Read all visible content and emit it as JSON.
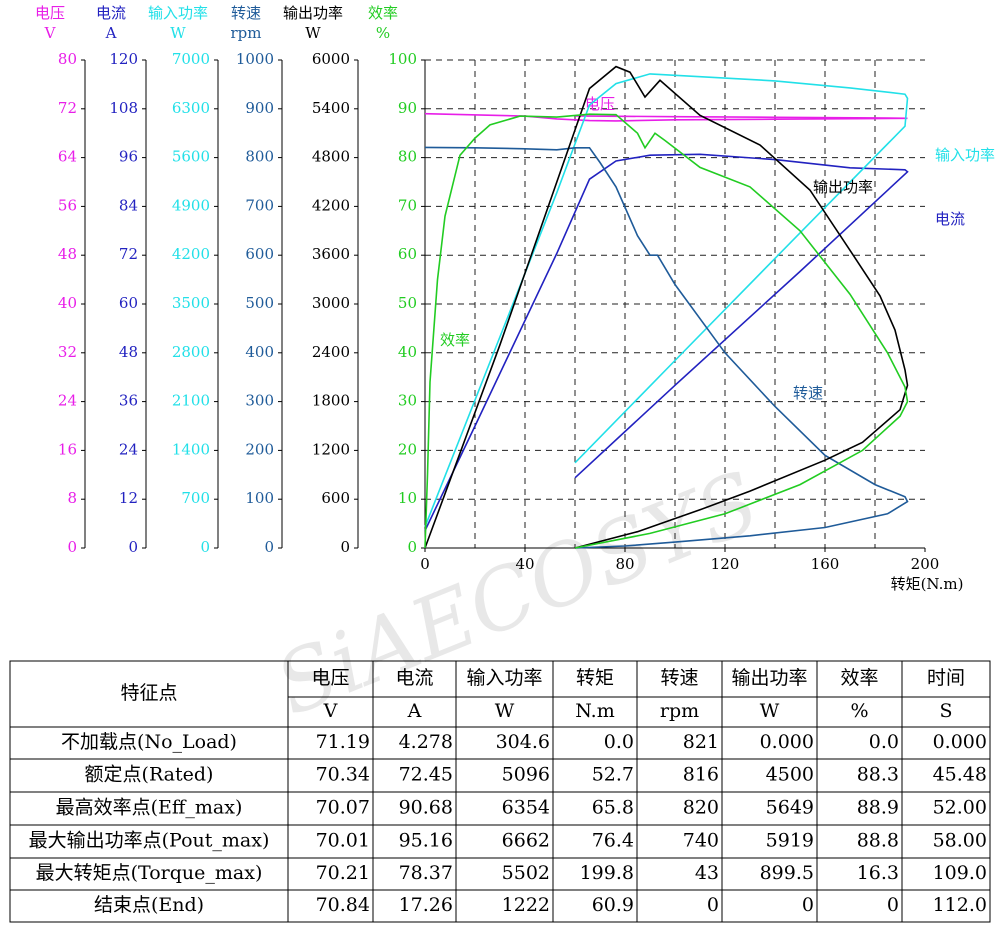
{
  "chart_data": {
    "type": "line",
    "x_label": "转矩(N.m)",
    "xlim": [
      0,
      200
    ],
    "xticks": [
      0,
      40,
      80,
      120,
      160,
      200
    ],
    "x_grid": [
      20,
      40,
      60,
      80,
      100,
      120,
      140,
      160,
      180
    ],
    "grid": true,
    "watermark": "SiAECOSYS",
    "axes": [
      {
        "name": "电压",
        "unit": "V",
        "color": "#e81ee8",
        "ylim": [
          0,
          80
        ],
        "yticks": [
          0,
          8,
          16,
          24,
          32,
          40,
          48,
          56,
          64,
          72,
          80
        ],
        "series": {
          "label": "电压",
          "x": [
            0,
            40,
            52.7,
            65.8,
            76.4,
            100,
            140,
            180,
            193,
            180,
            140,
            100,
            60
          ],
          "values": [
            71.19,
            70.8,
            70.34,
            70.07,
            70.01,
            70.2,
            70.3,
            70.4,
            70.45,
            70.5,
            70.6,
            70.7,
            70.84
          ]
        }
      },
      {
        "name": "电流",
        "unit": "A",
        "color": "#2222c0",
        "ylim": [
          0,
          120
        ],
        "yticks": [
          0,
          12,
          24,
          36,
          48,
          60,
          72,
          84,
          96,
          108,
          120
        ],
        "series": {
          "label": "电流",
          "x": [
            0,
            20,
            52.7,
            65.8,
            76.4,
            90,
            110,
            140,
            170,
            192,
            193,
            150,
            100,
            60
          ],
          "values": [
            4.278,
            30,
            72.45,
            90.68,
            95.16,
            96.6,
            96.8,
            95.5,
            93.5,
            93,
            92.5,
            68,
            40,
            17.26
          ]
        }
      },
      {
        "name": "输入功率",
        "unit": "W",
        "color": "#22e0e8",
        "ylim": [
          0,
          7000
        ],
        "yticks": [
          0,
          700,
          1400,
          2100,
          2800,
          3500,
          4200,
          4900,
          5600,
          6300,
          7000
        ],
        "series": {
          "label": "输入功率",
          "x": [
            0,
            52.7,
            65.8,
            76.4,
            90,
            110,
            140,
            170,
            192,
            193,
            192,
            150,
            100,
            60
          ],
          "values": [
            304.6,
            5096,
            6354,
            6662,
            6800,
            6760,
            6700,
            6600,
            6510,
            6450,
            6050,
            4520,
            2690,
            1222
          ]
        }
      },
      {
        "name": "转速",
        "unit": "rpm",
        "color": "#1f5b99",
        "ylim": [
          0,
          1000
        ],
        "yticks": [
          0,
          100,
          200,
          300,
          400,
          500,
          600,
          700,
          800,
          900,
          1000
        ],
        "series": {
          "label": "转速",
          "x": [
            0,
            20,
            40,
            52.7,
            60,
            65.8,
            70,
            76.4,
            85,
            90,
            93,
            100,
            120,
            140,
            160,
            180,
            192,
            193,
            185,
            160,
            130,
            100,
            80,
            60
          ],
          "values": [
            821,
            820,
            818,
            816,
            820,
            820,
            790,
            740,
            640,
            600,
            600,
            540,
            400,
            290,
            190,
            130,
            105,
            95,
            70,
            42,
            25,
            12,
            4,
            0
          ]
        }
      },
      {
        "name": "输出功率",
        "unit": "W",
        "color": "#000000",
        "ylim": [
          0,
          6000
        ],
        "yticks": [
          0,
          600,
          1200,
          1800,
          2400,
          3000,
          3600,
          4200,
          4800,
          5400,
          6000
        ],
        "series": {
          "label": "输出功率",
          "x": [
            0,
            30,
            52.7,
            65.8,
            76.4,
            82,
            88,
            94,
            110,
            134,
            154,
            170,
            182,
            188,
            192,
            193,
            190,
            175,
            160,
            130,
            110,
            85,
            60
          ],
          "values": [
            0,
            2500,
            4500,
            5649,
            5919,
            5850,
            5545,
            5750,
            5320,
            4955,
            4400,
            3660,
            3100,
            2680,
            2190,
            2000,
            1700,
            1300,
            1080,
            700,
            470,
            200,
            0
          ]
        }
      },
      {
        "name": "效率",
        "unit": "%",
        "color": "#22cc22",
        "ylim": [
          0,
          100
        ],
        "yticks": [
          0,
          10,
          20,
          30,
          40,
          50,
          60,
          70,
          80,
          90,
          100
        ],
        "series": {
          "label": "效率",
          "x": [
            0,
            1,
            2,
            5,
            8,
            14,
            20,
            26,
            38,
            52.7,
            65.8,
            76.4,
            85,
            88,
            92,
            96,
            110,
            130,
            150,
            170,
            185,
            192,
            193,
            190,
            175,
            150,
            120,
            90,
            60
          ],
          "values": [
            0,
            15,
            34,
            55,
            68,
            80.5,
            84,
            86.7,
            88.5,
            88.3,
            88.9,
            88.8,
            85,
            82,
            85,
            83.5,
            78,
            74,
            65,
            52,
            40,
            33,
            30,
            27,
            20,
            13,
            7,
            3,
            0
          ]
        }
      }
    ]
  },
  "table": {
    "row_header": "特征点",
    "columns": [
      {
        "name": "电压",
        "unit": "V"
      },
      {
        "name": "电流",
        "unit": "A"
      },
      {
        "name": "输入功率",
        "unit": "W"
      },
      {
        "name": "转矩",
        "unit": "N.m"
      },
      {
        "name": "转速",
        "unit": "rpm"
      },
      {
        "name": "输出功率",
        "unit": "W"
      },
      {
        "name": "效率",
        "unit": "%"
      },
      {
        "name": "时间",
        "unit": "S"
      }
    ],
    "rows": [
      {
        "label": "不加载点(No_Load)",
        "cells": [
          "71.19",
          "4.278",
          "304.6",
          "0.0",
          "821",
          "0.000",
          "0.0",
          "0.000"
        ]
      },
      {
        "label": "额定点(Rated)",
        "cells": [
          "70.34",
          "72.45",
          "5096",
          "52.7",
          "816",
          "4500",
          "88.3",
          "45.48"
        ]
      },
      {
        "label": "最高效率点(Eff_max)",
        "cells": [
          "70.07",
          "90.68",
          "6354",
          "65.8",
          "820",
          "5649",
          "88.9",
          "52.00"
        ]
      },
      {
        "label": "最大输出功率点(Pout_max)",
        "cells": [
          "70.01",
          "95.16",
          "6662",
          "76.4",
          "740",
          "5919",
          "88.8",
          "58.00"
        ]
      },
      {
        "label": "最大转矩点(Torque_max)",
        "cells": [
          "70.21",
          "78.37",
          "5502",
          "199.8",
          "43",
          "899.5",
          "16.3",
          "109.0"
        ]
      },
      {
        "label": "结束点(End)",
        "cells": [
          "70.84",
          "17.26",
          "1222",
          "60.9",
          "0",
          "0",
          "0",
          "112.0"
        ]
      }
    ]
  }
}
